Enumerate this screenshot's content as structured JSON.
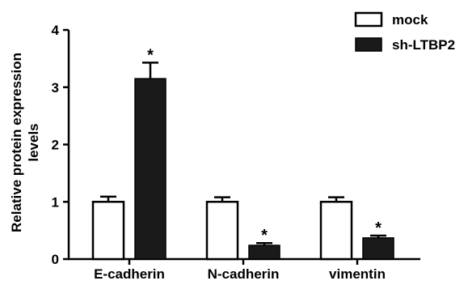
{
  "chart_data": {
    "type": "bar",
    "ylabel": "Relative protein expression levels",
    "ylabel_lines": [
      "Relative protein expression",
      "levels"
    ],
    "ylim": [
      0,
      4
    ],
    "yticks": [
      0,
      1,
      2,
      3,
      4
    ],
    "categories": [
      "E-cadherin",
      "N-cadherin",
      "vimentin"
    ],
    "series": [
      {
        "name": "mock",
        "values": [
          1.0,
          1.0,
          1.0
        ],
        "errors": [
          0.09,
          0.08,
          0.08
        ],
        "color": "#ffffff"
      },
      {
        "name": "sh-LTBP2",
        "values": [
          3.15,
          0.24,
          0.37
        ],
        "errors": [
          0.28,
          0.04,
          0.04
        ],
        "color": "#1a1a1a"
      }
    ],
    "significance": [
      "*",
      "*",
      "*"
    ],
    "significance_series": "sh-LTBP2",
    "legend_position": "top-right",
    "grid": false
  }
}
